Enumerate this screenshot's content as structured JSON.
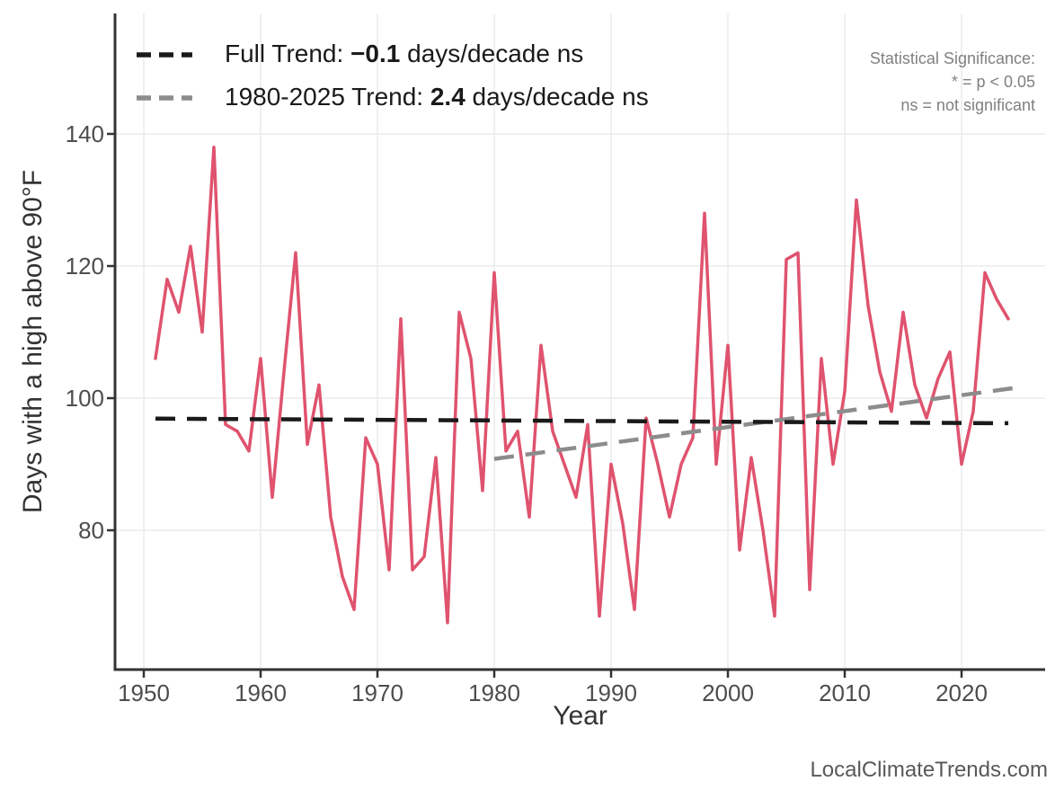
{
  "legend": {
    "full_trend": {
      "prefix": "Full Trend: ",
      "value": "−0.1",
      "suffix": " days/decade ns"
    },
    "recent_trend": {
      "prefix": "1980-2025 Trend: ",
      "value": "2.4",
      "suffix": " days/decade ns"
    }
  },
  "stat_note": {
    "line1": "Statistical Significance:",
    "line2": "* = p < 0.05",
    "line3": "ns = not significant"
  },
  "watermark": "LocalClimateTrends.com",
  "colors": {
    "series": "#DF536E",
    "full_trend": "#1a1a1a",
    "recent_trend": "#8c8c8c",
    "grid": "#ececec",
    "axis": "#333333",
    "tick_label": "#4d4d4d"
  },
  "chart_data": {
    "type": "line",
    "title": "",
    "xlabel": "Year",
    "ylabel": "Days with a high above 90°F",
    "x_ticks": [
      1950,
      1960,
      1970,
      1980,
      1990,
      2000,
      2010,
      2020
    ],
    "y_ticks": [
      80,
      100,
      120,
      140
    ],
    "xlim": [
      1947.5,
      2027.2
    ],
    "ylim": [
      59,
      158
    ],
    "grid": "major-only",
    "legend_position": "top-left-inside",
    "series": [
      {
        "name": "annual-days-above-90F",
        "style": "solid",
        "x": [
          1951,
          1952,
          1953,
          1954,
          1955,
          1956,
          1957,
          1958,
          1959,
          1960,
          1961,
          1962,
          1963,
          1964,
          1965,
          1966,
          1967,
          1968,
          1969,
          1970,
          1971,
          1972,
          1973,
          1974,
          1975,
          1976,
          1977,
          1978,
          1979,
          1980,
          1981,
          1982,
          1983,
          1984,
          1985,
          1986,
          1987,
          1988,
          1989,
          1990,
          1991,
          1992,
          1993,
          1994,
          1995,
          1996,
          1997,
          1998,
          1999,
          2000,
          2001,
          2002,
          2003,
          2004,
          2005,
          2006,
          2007,
          2008,
          2009,
          2010,
          2011,
          2012,
          2013,
          2014,
          2015,
          2016,
          2017,
          2018,
          2019,
          2020,
          2021,
          2022,
          2023,
          2024
        ],
        "values": [
          106,
          118,
          113,
          123,
          110,
          138,
          96,
          95,
          92,
          106,
          85,
          104,
          122,
          93,
          102,
          82,
          73,
          68,
          94,
          90,
          74,
          112,
          74,
          76,
          91,
          66,
          113,
          106,
          86,
          119,
          92,
          95,
          82,
          108,
          95,
          90,
          85,
          96,
          67,
          90,
          81,
          68,
          97,
          90,
          82,
          90,
          94,
          128,
          90,
          108,
          77,
          91,
          80,
          67,
          121,
          122,
          71,
          106,
          90,
          101,
          130,
          114,
          104,
          98,
          113,
          102,
          97,
          103,
          107,
          90,
          98,
          119,
          115,
          112
        ]
      },
      {
        "name": "full-trend",
        "style": "dashed",
        "slope_days_per_decade": -0.1,
        "significance": "ns",
        "x": [
          1951,
          2024
        ],
        "values": [
          96.9,
          96.2
        ]
      },
      {
        "name": "trend-1980-2025",
        "style": "dashed",
        "slope_days_per_decade": 2.4,
        "significance": "ns",
        "x": [
          1980,
          2025
        ],
        "values": [
          90.8,
          101.6
        ]
      }
    ]
  }
}
